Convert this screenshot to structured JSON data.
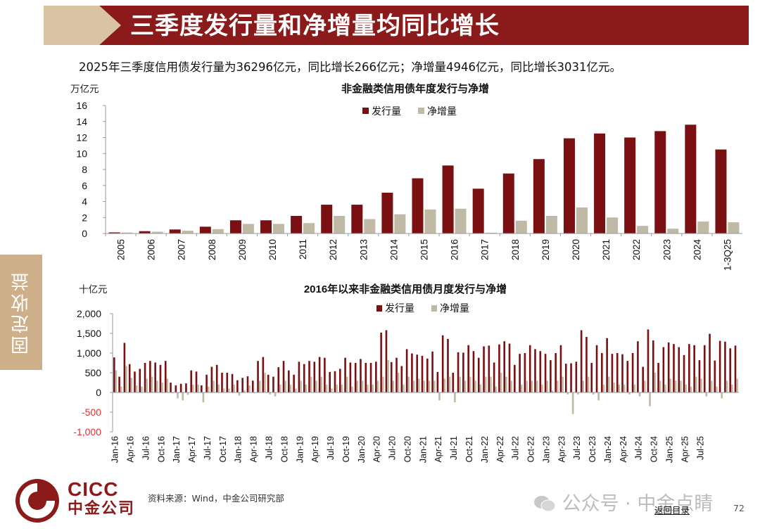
{
  "header": {
    "title": "三季度发行量和净增量均同比增长"
  },
  "summary": "2025年三季度信用债发行量为36296亿元，同比增长266亿元；净增量4946亿元，同比增长3031亿元。",
  "side_tab": "固定收益",
  "colors": {
    "issuance": "#7B1012",
    "net": "#BFB9A6",
    "brand": "#8B1A1A",
    "negative_label": "#E03030"
  },
  "charts": {
    "annual": {
      "unit": "万亿元"
    },
    "monthly": {
      "unit": "十亿元"
    }
  },
  "chart_data": [
    {
      "type": "bar",
      "title": "非金融类信用债年度发行与净增",
      "ylabel": "万亿元",
      "ylim": [
        0,
        16
      ],
      "yticks": [
        "0",
        "2",
        "4",
        "6",
        "8",
        "10",
        "12",
        "14",
        "16"
      ],
      "legend_position": "top-center",
      "grid": false,
      "categories": [
        "2005",
        "2006",
        "2007",
        "2008",
        "2009",
        "2010",
        "2011",
        "2012",
        "2013",
        "2014",
        "2015",
        "2016",
        "2017",
        "2018",
        "2019",
        "2020",
        "2021",
        "2022",
        "2023",
        "2024",
        "1-3Q25"
      ],
      "series": [
        {
          "name": "发行量",
          "values": [
            0.14,
            0.29,
            0.5,
            0.85,
            1.65,
            1.65,
            2.2,
            3.6,
            3.6,
            5.1,
            6.9,
            8.5,
            5.6,
            7.5,
            9.3,
            11.9,
            12.5,
            12.0,
            12.8,
            13.6,
            10.5
          ]
        },
        {
          "name": "净增量",
          "values": [
            0.12,
            0.22,
            0.35,
            0.55,
            1.2,
            1.2,
            1.3,
            2.2,
            1.8,
            2.4,
            3.0,
            3.1,
            0.1,
            1.6,
            2.2,
            3.25,
            2.0,
            0.95,
            0.6,
            1.5,
            1.4
          ]
        }
      ]
    },
    {
      "type": "bar",
      "title": "2016年以来非金融类信用债月度发行与净增",
      "ylabel": "十亿元",
      "ylim": [
        -1000,
        2000
      ],
      "yticks": [
        "2,000",
        "1,500",
        "1,000",
        "500",
        "0",
        "-500",
        "-1,000"
      ],
      "legend_position": "top-center",
      "grid": false,
      "tick_labels": [
        "Jan-16",
        "Apr-16",
        "Jul-16",
        "Oct-16",
        "Jan-17",
        "Apr-17",
        "Jul-17",
        "Oct-17",
        "Jan-18",
        "Apr-18",
        "Jul-18",
        "Oct-18",
        "Jan-19",
        "Apr-19",
        "Jul-19",
        "Oct-19",
        "Jan-20",
        "Apr-20",
        "Jul-20",
        "Oct-20",
        "Jan-21",
        "Apr-21",
        "Jul-21",
        "Oct-21",
        "Jan-22",
        "Apr-22",
        "Jul-22",
        "Oct-22",
        "Jan-23",
        "Apr-23",
        "Jul-23",
        "Oct-23",
        "Jan-24",
        "Apr-24",
        "Jul-24",
        "Oct-24",
        "Jan-25",
        "Apr-25",
        "Jul-25"
      ],
      "series": [
        {
          "name": "发行量",
          "values": [
            890,
            400,
            1260,
            720,
            530,
            600,
            750,
            800,
            760,
            700,
            800,
            250,
            180,
            220,
            230,
            560,
            530,
            180,
            450,
            650,
            700,
            500,
            500,
            470,
            310,
            370,
            410,
            300,
            800,
            900,
            450,
            400,
            640,
            800,
            560,
            450,
            780,
            720,
            800,
            780,
            900,
            880,
            520,
            540,
            600,
            880,
            760,
            750,
            850,
            750,
            750,
            780,
            1520,
            1580,
            770,
            880,
            670,
            1100,
            990,
            960,
            930,
            860,
            1040,
            520,
            1450,
            1360,
            500,
            1020,
            1010,
            1200,
            1050,
            880,
            1170,
            1190,
            760,
            1220,
            1300,
            1240,
            700,
            980,
            1000,
            1200,
            1100,
            1050,
            980,
            820,
            1000,
            1200,
            730,
            740,
            780,
            1580,
            1410,
            750,
            1200,
            1000,
            1380,
            980,
            1000,
            970,
            800,
            1000,
            1300,
            650,
            1600,
            1320,
            750,
            1150,
            1270,
            1230,
            1150,
            950,
            1230,
            1200,
            820,
            1200,
            1490,
            810,
            1310,
            1290,
            1120,
            1190
          ]
        },
        {
          "name": "净增量",
          "values": [
            560,
            150,
            670,
            370,
            180,
            150,
            350,
            400,
            300,
            250,
            350,
            -20,
            -150,
            -200,
            -60,
            200,
            200,
            -250,
            150,
            300,
            200,
            100,
            100,
            200,
            -80,
            50,
            180,
            -20,
            300,
            500,
            -50,
            -100,
            200,
            300,
            200,
            100,
            300,
            200,
            400,
            300,
            400,
            200,
            100,
            200,
            200,
            400,
            150,
            300,
            300,
            200,
            200,
            300,
            400,
            820,
            300,
            500,
            200,
            400,
            300,
            350,
            300,
            300,
            300,
            -200,
            350,
            400,
            -250,
            400,
            300,
            400,
            300,
            200,
            400,
            400,
            150,
            500,
            400,
            300,
            -20,
            200,
            300,
            300,
            300,
            200,
            300,
            50,
            300,
            400,
            -50,
            -550,
            -50,
            300,
            400,
            -50,
            -200,
            200,
            400,
            250,
            200,
            200,
            -50,
            200,
            -100,
            300,
            -350,
            500,
            300,
            200,
            350,
            300,
            300,
            200,
            150,
            400,
            350,
            -100,
            300,
            150,
            -150,
            300,
            200,
            350,
            300
          ]
        }
      ]
    }
  ],
  "footer": {
    "logo_en": "CICC",
    "logo_cn": "中金公司",
    "source": "资料来源：Wind，中金公司研究部",
    "watermark": "公众号 · 中金点睛",
    "back_link": "返回目录",
    "page_number": "72"
  }
}
